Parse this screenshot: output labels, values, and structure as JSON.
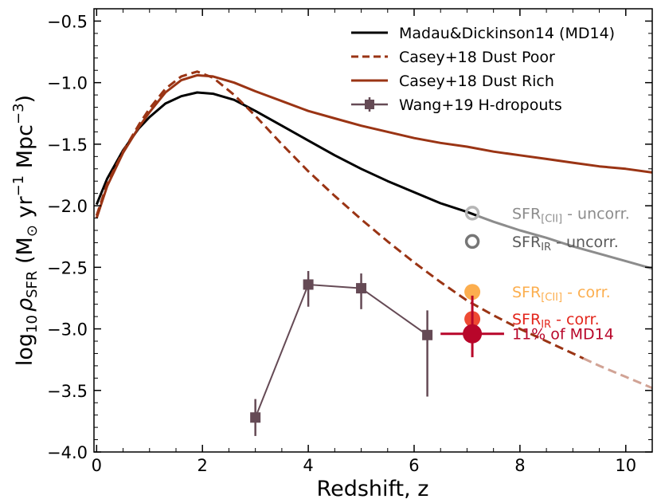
{
  "chart_data": {
    "type": "line",
    "title": "",
    "xlabel": "Redshift, z",
    "ylabel": {
      "prefix": "log",
      "sub10": "10",
      "rho": "ρ",
      "subSFR": "SFR",
      "open": " (M",
      "sun": "⊙",
      "yr": " yr",
      "sup1": "−1",
      "mpc": " Mpc",
      "sup3": "−3",
      "close": ")"
    },
    "xlim": [
      -0.05,
      10.5
    ],
    "ylim": [
      -4.0,
      -0.4
    ],
    "xticks": [
      0,
      2,
      4,
      6,
      8,
      10
    ],
    "xtick_labels": [
      "0",
      "2",
      "4",
      "6",
      "8",
      "10"
    ],
    "yticks": [
      -4.0,
      -3.5,
      -3.0,
      -2.5,
      -2.0,
      -1.5,
      -1.0,
      -0.5
    ],
    "ytick_labels": [
      "−4.0",
      "−3.5",
      "−3.0",
      "−2.5",
      "−2.0",
      "−1.5",
      "−1.0",
      "−0.5"
    ],
    "legend_position": "top-right",
    "legend": [
      {
        "label": "Madau&Dickinson14 (MD14)",
        "color": "#000000",
        "style": "solid"
      },
      {
        "label": "Casey+18 Dust Poor",
        "color": "#9a3414",
        "style": "dashed"
      },
      {
        "label": "Casey+18 Dust Rich",
        "color": "#9a3414",
        "style": "solid"
      },
      {
        "label": "Wang+19 H-dropouts",
        "color": "#654a55",
        "style": "marker"
      }
    ],
    "series": [
      {
        "name": "Madau&Dickinson14 (MD14)",
        "color": "#000000",
        "x": [
          0.0,
          0.2,
          0.5,
          0.8,
          1.0,
          1.3,
          1.6,
          1.9,
          2.2,
          2.6,
          3.0,
          3.5,
          4.0,
          4.5,
          5.0,
          5.5,
          6.0,
          6.5,
          7.0,
          7.5,
          8.0,
          8.5,
          9.0,
          9.5,
          10.0,
          10.5
        ],
        "y": [
          -1.99,
          -1.78,
          -1.55,
          -1.37,
          -1.28,
          -1.17,
          -1.11,
          -1.08,
          -1.09,
          -1.14,
          -1.23,
          -1.35,
          -1.47,
          -1.59,
          -1.7,
          -1.8,
          -1.89,
          -1.98,
          -2.05,
          -2.13,
          -2.2,
          -2.26,
          -2.33,
          -2.39,
          -2.45,
          -2.51
        ],
        "faded_from": 7.2
      },
      {
        "name": "Casey+18 Dust Poor",
        "color": "#9a3414",
        "x": [
          0.0,
          0.2,
          0.5,
          0.8,
          1.0,
          1.3,
          1.6,
          1.9,
          2.2,
          2.6,
          3.0,
          3.5,
          4.0,
          4.5,
          5.0,
          5.5,
          6.0,
          6.5,
          7.0,
          7.5,
          8.0,
          8.5,
          9.0,
          9.5,
          10.0,
          10.5
        ],
        "y": [
          -2.08,
          -1.82,
          -1.56,
          -1.34,
          -1.21,
          -1.05,
          -0.95,
          -0.91,
          -0.96,
          -1.1,
          -1.27,
          -1.5,
          -1.72,
          -1.92,
          -2.11,
          -2.29,
          -2.46,
          -2.62,
          -2.77,
          -2.89,
          -3.0,
          -3.1,
          -3.2,
          -3.3,
          -3.39,
          -3.48
        ],
        "faded_from": 9.2
      },
      {
        "name": "Casey+18 Dust Rich",
        "color": "#9a3414",
        "x": [
          0.0,
          0.2,
          0.5,
          0.8,
          1.0,
          1.3,
          1.6,
          1.9,
          2.2,
          2.6,
          3.0,
          3.5,
          4.0,
          4.5,
          5.0,
          5.5,
          6.0,
          6.5,
          7.0,
          7.5,
          8.0,
          8.5,
          9.0,
          9.5,
          10.0,
          10.5
        ],
        "y": [
          -2.1,
          -1.84,
          -1.57,
          -1.36,
          -1.24,
          -1.08,
          -0.98,
          -0.94,
          -0.95,
          -1.0,
          -1.07,
          -1.15,
          -1.23,
          -1.29,
          -1.35,
          -1.4,
          -1.45,
          -1.49,
          -1.52,
          -1.56,
          -1.59,
          -1.62,
          -1.65,
          -1.68,
          -1.7,
          -1.73
        ]
      }
    ],
    "points": {
      "name": "Wang+19 H-dropouts",
      "color": "#654a55",
      "x": [
        3.0,
        4.0,
        5.0,
        6.25
      ],
      "y": [
        -3.72,
        -2.64,
        -2.67,
        -3.05
      ],
      "err_low": [
        0.15,
        0.18,
        0.17,
        0.5
      ],
      "err_high": [
        0.15,
        0.11,
        0.12,
        0.2
      ]
    },
    "markers": [
      {
        "label_main": "SFR",
        "label_sub": "[CII]",
        "label_rest": " - uncorr.",
        "x": 7.1,
        "y": -2.06,
        "fill": "none",
        "stroke": "#b5b5b5",
        "label_color": "#8c8c8c"
      },
      {
        "label_main": "SFR",
        "label_sub": "IR",
        "label_rest": " - uncorr.",
        "x": 7.1,
        "y": -2.29,
        "fill": "none",
        "stroke": "#767676",
        "label_color": "#5a5a5a"
      },
      {
        "label_main": "SFR",
        "label_sub": "[CII]",
        "label_rest": " - corr.",
        "x": 7.1,
        "y": -2.7,
        "fill": "#fcae4e",
        "stroke": "none",
        "label_color": "#fcae4e"
      },
      {
        "label_main": "SFR",
        "label_sub": "IR",
        "label_rest": " - corr.",
        "x": 7.1,
        "y": -2.92,
        "fill": "#ee4a33",
        "stroke": "none",
        "label_color": "#e3261c"
      },
      {
        "label_main": "11% of MD14",
        "label_sub": "",
        "label_rest": "",
        "x": 7.1,
        "y": -3.04,
        "fill": "#b8062a",
        "stroke": "none",
        "label_color": "#b8062a",
        "err_x": 0.6,
        "err_y_low": 0.19,
        "err_y_high": 0.31
      }
    ]
  }
}
